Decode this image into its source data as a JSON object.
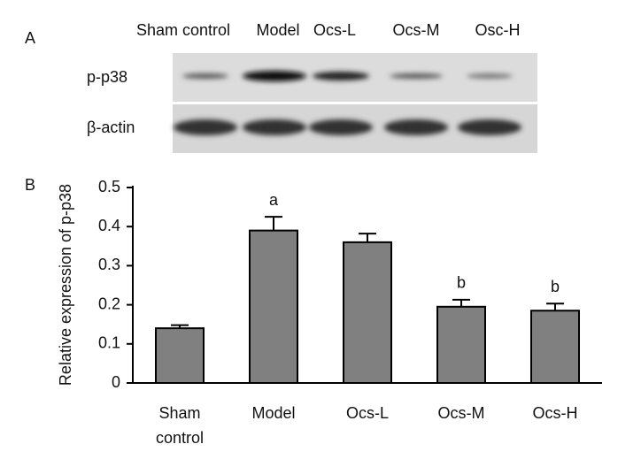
{
  "blot": {
    "panel_label": "A",
    "lanes": [
      "Sham control",
      "Model",
      "Ocs-L",
      "Ocs-M",
      "Osc-H"
    ],
    "rows": [
      "p-p38",
      "β-actin"
    ]
  },
  "chart_data": {
    "type": "bar",
    "panel_label": "B",
    "y_label": "Relative expression of p-p38",
    "categories": [
      "Sham control",
      "Model",
      "Ocs-L",
      "Ocs-M",
      "Ocs-H"
    ],
    "values": [
      0.14,
      0.39,
      0.36,
      0.195,
      0.185
    ],
    "errors": [
      0.008,
      0.035,
      0.022,
      0.018,
      0.018
    ],
    "bar_labels": [
      null,
      "a",
      null,
      "b",
      "b"
    ],
    "color": "#808080",
    "ylim": [
      0,
      0.5
    ],
    "yticks": [
      0,
      0.1,
      0.2,
      0.3,
      0.4,
      0.5
    ],
    "grid": false
  }
}
